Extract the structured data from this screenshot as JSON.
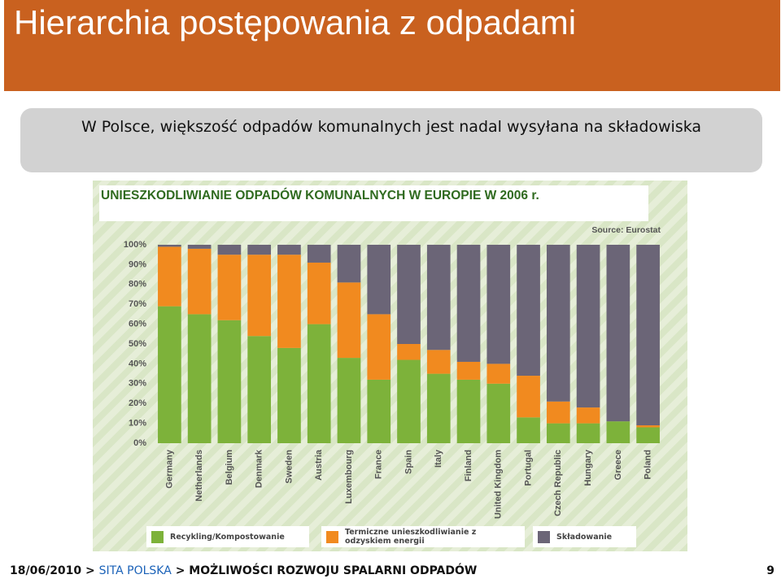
{
  "header": {
    "title": "Hierarchia postępowania z odpadami"
  },
  "subtitle": "W Polsce, większość odpadów komunalnych jest nadal wysyłana na składowiska",
  "chart_data": {
    "type": "stacked-bar",
    "title": "UNIESZKODLIWIANIE ODPADÓW KOMUNALNYCH W EUROPIE W 2006 r.",
    "source": "Source: Eurostat",
    "categories": [
      "Germany",
      "Netherlands",
      "Belgium",
      "Denmark",
      "Sweden",
      "Austria",
      "Luxembourg",
      "France",
      "Spain",
      "Italy",
      "Finland",
      "United Kingdom",
      "Portugal",
      "Czech Republic",
      "Hungary",
      "Greece",
      "Poland"
    ],
    "series": [
      {
        "name": "Recykling/Kompostowanie",
        "color": "#7db23a",
        "values": [
          69,
          65,
          62,
          54,
          48,
          60,
          43,
          32,
          42,
          35,
          32,
          30,
          13,
          10,
          10,
          11,
          8
        ]
      },
      {
        "name": "Termiczne unieszkodliwianie z odzyskiem energii",
        "color": "#f18a1f",
        "values": [
          30,
          33,
          33,
          41,
          47,
          31,
          38,
          33,
          8,
          12,
          9,
          10,
          21,
          11,
          8,
          0,
          1
        ]
      },
      {
        "name": "Składowanie",
        "color": "#6b6577",
        "values": [
          1,
          2,
          5,
          5,
          5,
          9,
          19,
          35,
          50,
          53,
          59,
          60,
          66,
          79,
          82,
          89,
          91
        ]
      }
    ],
    "ylim": [
      0,
      100
    ],
    "yticks": [
      {
        "value": 0,
        "label": "0%"
      },
      {
        "value": 10,
        "label": "10%"
      },
      {
        "value": 20,
        "label": "20%"
      },
      {
        "value": 30,
        "label": "30%"
      },
      {
        "value": 40,
        "label": "40%"
      },
      {
        "value": 50,
        "label": "50%"
      },
      {
        "value": 60,
        "label": "60%"
      },
      {
        "value": 70,
        "label": "70%"
      },
      {
        "value": 80,
        "label": "80%"
      },
      {
        "value": 90,
        "label": "90%"
      },
      {
        "value": 100,
        "label": "100%"
      }
    ],
    "grid": false
  },
  "footer": {
    "date": "18/06/2010 >",
    "company": "SITA POLSKA",
    "section": "> MOŻLIWOŚCI ROZWOJU SPALARNI ODPADÓW",
    "page": "9"
  }
}
